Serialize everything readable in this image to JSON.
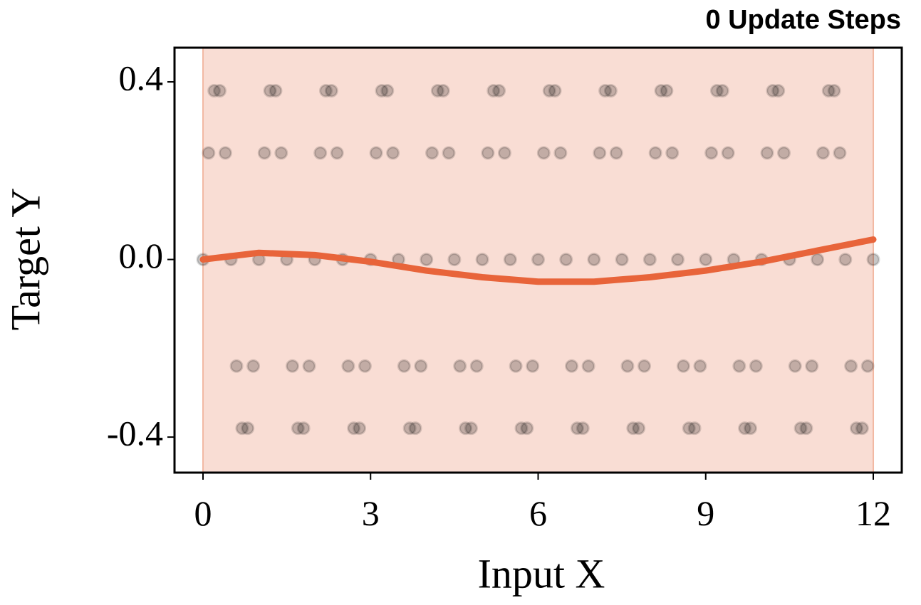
{
  "chart_data": {
    "type": "scatter",
    "title": "0 Update Steps",
    "xlabel": "Input X",
    "ylabel": "Target Y",
    "xlim": [
      -0.51,
      12.51
    ],
    "ylim": [
      -0.48,
      0.477
    ],
    "xticks": [
      0,
      3,
      6,
      9,
      12
    ],
    "yticks": [
      -0.4,
      {
        "value": 0,
        "label": "0.0"
      },
      0.4
    ],
    "shade": [
      0,
      12
    ],
    "shade_color": "#f9ddd4",
    "series": [
      {
        "type": "scatter",
        "color": "#000000",
        "x": [
          0,
          0.1,
          0.2,
          0.3,
          0.4,
          0.5,
          0.6,
          0.7,
          0.8,
          0.9,
          1,
          1.1,
          1.2,
          1.3,
          1.4,
          1.5,
          1.6,
          1.7,
          1.8,
          1.9,
          2,
          2.1,
          2.2,
          2.3,
          2.4,
          2.5,
          2.6,
          2.7,
          2.8,
          2.9,
          3,
          3.1,
          3.2,
          3.3,
          3.4,
          3.5,
          3.6,
          3.7,
          3.8,
          3.9,
          4,
          4.1,
          4.2,
          4.3,
          4.4,
          4.5,
          4.6,
          4.7,
          4.8,
          4.9,
          5,
          5.1,
          5.2,
          5.3,
          5.4,
          5.5,
          5.6,
          5.7,
          5.8,
          5.9,
          6,
          6.1,
          6.2,
          6.3,
          6.4,
          6.5,
          6.6,
          6.7,
          6.8,
          6.9,
          7,
          7.1,
          7.2,
          7.3,
          7.4,
          7.5,
          7.6,
          7.7,
          7.8,
          7.9,
          8,
          8.1,
          8.2,
          8.3,
          8.4,
          8.5,
          8.6,
          8.7,
          8.8,
          8.9,
          9,
          9.1,
          9.2,
          9.3,
          9.4,
          9.5,
          9.6,
          9.7,
          9.8,
          9.9,
          10,
          10.1,
          10.2,
          10.3,
          10.4,
          10.5,
          10.6,
          10.7,
          10.8,
          10.9,
          11,
          11.1,
          11.2,
          11.3,
          11.4,
          11.5,
          11.6,
          11.7,
          11.8,
          11.9,
          12
        ],
        "values": [
          0,
          0.24,
          0.38,
          0.38,
          0.24,
          0,
          -0.24,
          -0.38,
          -0.38,
          -0.24,
          0,
          0.24,
          0.38,
          0.38,
          0.24,
          0,
          -0.24,
          -0.38,
          -0.38,
          -0.24,
          0,
          0.24,
          0.38,
          0.38,
          0.24,
          0,
          -0.24,
          -0.38,
          -0.38,
          -0.24,
          0,
          0.24,
          0.38,
          0.38,
          0.24,
          0,
          -0.24,
          -0.38,
          -0.38,
          -0.24,
          0,
          0.24,
          0.38,
          0.38,
          0.24,
          0,
          -0.24,
          -0.38,
          -0.38,
          -0.24,
          0,
          0.24,
          0.38,
          0.38,
          0.24,
          0,
          -0.24,
          -0.38,
          -0.38,
          -0.24,
          0,
          0.24,
          0.38,
          0.38,
          0.24,
          0,
          -0.24,
          -0.38,
          -0.38,
          -0.24,
          0,
          0.24,
          0.38,
          0.38,
          0.24,
          0,
          -0.24,
          -0.38,
          -0.38,
          -0.24,
          0,
          0.24,
          0.38,
          0.38,
          0.24,
          0,
          -0.24,
          -0.38,
          -0.38,
          -0.24,
          0,
          0.24,
          0.38,
          0.38,
          0.24,
          0,
          -0.24,
          -0.38,
          -0.38,
          -0.24,
          0,
          0.24,
          0.38,
          0.38,
          0.24,
          0,
          -0.24,
          -0.38,
          -0.38,
          -0.24,
          0,
          0.24,
          0.38,
          0.38,
          0.24,
          0,
          -0.24,
          -0.38,
          -0.38,
          -0.24,
          0
        ]
      },
      {
        "type": "line",
        "color": "#e8643a",
        "x": [
          0,
          1,
          2,
          3,
          4,
          5,
          6,
          7,
          8,
          9,
          10,
          11,
          12
        ],
        "values": [
          0,
          0.015,
          0.01,
          -0.005,
          -0.025,
          -0.04,
          -0.05,
          -0.05,
          -0.04,
          -0.025,
          -0.005,
          0.02,
          0.045
        ]
      }
    ]
  }
}
